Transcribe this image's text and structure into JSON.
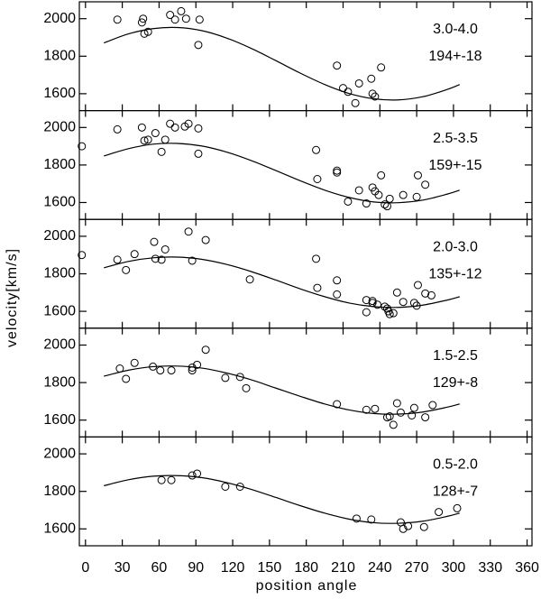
{
  "shared": {
    "xlabel": "position angle",
    "ylabel": "velocity[km/s]"
  },
  "chart_data": [
    {
      "type": "scatter",
      "annotations": [
        "3.0-4.0",
        "194+-18"
      ],
      "x": [
        26,
        46,
        47,
        48,
        51,
        69,
        73,
        78,
        82,
        93,
        92,
        205,
        210,
        214,
        220,
        223,
        233,
        234,
        236,
        241
      ],
      "values": [
        1995,
        1980,
        2000,
        1920,
        1930,
        2020,
        1995,
        2040,
        2000,
        1995,
        1860,
        1750,
        1630,
        1610,
        1550,
        1655,
        1680,
        1600,
        1585,
        1740
      ],
      "fit": {
        "x": [
          15,
          35,
          55,
          75,
          95,
          115,
          135,
          155,
          175,
          195,
          215,
          235,
          255,
          275,
          295,
          305
        ],
        "values": [
          1871,
          1919,
          1947,
          1953,
          1936,
          1897,
          1842,
          1777,
          1710,
          1649,
          1601,
          1573,
          1567,
          1584,
          1623,
          1649
        ]
      },
      "xlim": [
        -5,
        364
      ],
      "xticks": [
        0,
        30,
        60,
        90,
        120,
        150,
        180,
        210,
        240,
        270,
        300,
        330,
        360
      ],
      "ylim": [
        1510,
        2090
      ],
      "yticks": [
        1600,
        1800,
        2000
      ]
    },
    {
      "type": "scatter",
      "annotations": [
        "2.5-3.5",
        "159+-15"
      ],
      "x": [
        -3,
        26,
        46,
        48,
        51,
        57,
        62,
        65,
        69,
        73,
        81,
        84,
        92,
        92,
        188,
        189,
        205,
        205,
        214,
        223,
        229,
        234,
        236,
        239,
        241,
        244,
        246,
        248,
        259,
        270,
        271,
        277
      ],
      "values": [
        1900,
        1990,
        2000,
        1930,
        1935,
        1970,
        1870,
        1935,
        2020,
        2000,
        2005,
        2020,
        1995,
        1860,
        1880,
        1725,
        1770,
        1760,
        1605,
        1665,
        1595,
        1680,
        1660,
        1640,
        1745,
        1590,
        1580,
        1620,
        1640,
        1630,
        1745,
        1695
      ],
      "fit": {
        "x": [
          15,
          35,
          55,
          75,
          95,
          115,
          135,
          155,
          175,
          195,
          215,
          235,
          255,
          275,
          295,
          305
        ],
        "values": [
          1848,
          1887,
          1911,
          1915,
          1901,
          1869,
          1824,
          1771,
          1716,
          1666,
          1627,
          1603,
          1599,
          1613,
          1645,
          1666
        ]
      },
      "xlim": [
        -5,
        364
      ],
      "xticks": [
        0,
        30,
        60,
        90,
        120,
        150,
        180,
        210,
        240,
        270,
        300,
        330,
        360
      ],
      "ylim": [
        1510,
        2090
      ],
      "yticks": [
        1600,
        1800,
        2000
      ]
    },
    {
      "type": "scatter",
      "annotations": [
        "2.0-3.0",
        "135+-12"
      ],
      "x": [
        -3,
        26,
        33,
        40,
        56,
        57,
        62,
        65,
        84,
        87,
        98,
        134,
        188,
        189,
        205,
        205,
        229,
        229,
        234,
        234,
        238,
        244,
        246,
        247,
        248,
        251,
        254,
        259,
        268,
        270,
        271,
        277,
        282
      ],
      "values": [
        1900,
        1875,
        1820,
        1905,
        1970,
        1880,
        1875,
        1930,
        2025,
        1870,
        1980,
        1770,
        1880,
        1725,
        1765,
        1690,
        1595,
        1660,
        1655,
        1645,
        1635,
        1625,
        1615,
        1600,
        1585,
        1590,
        1700,
        1650,
        1645,
        1630,
        1740,
        1695,
        1685
      ],
      "fit": {
        "x": [
          15,
          35,
          55,
          75,
          95,
          115,
          135,
          155,
          175,
          195,
          215,
          235,
          255,
          275,
          295,
          305
        ],
        "values": [
          1832,
          1866,
          1885,
          1889,
          1877,
          1850,
          1812,
          1767,
          1720,
          1678,
          1644,
          1625,
          1621,
          1633,
          1660,
          1678
        ]
      },
      "xlim": [
        -5,
        364
      ],
      "xticks": [
        0,
        30,
        60,
        90,
        120,
        150,
        180,
        210,
        240,
        270,
        300,
        330,
        360
      ],
      "ylim": [
        1510,
        2090
      ],
      "yticks": [
        1600,
        1800,
        2000
      ]
    },
    {
      "type": "scatter",
      "annotations": [
        "1.5-2.5",
        "129+-8"
      ],
      "x": [
        28,
        33,
        40,
        55,
        61,
        70,
        87,
        87,
        91,
        98,
        114,
        126,
        131,
        205,
        229,
        236,
        246,
        248,
        251,
        254,
        257,
        266,
        268,
        277,
        283
      ],
      "values": [
        1875,
        1820,
        1905,
        1885,
        1865,
        1865,
        1865,
        1880,
        1895,
        1975,
        1825,
        1830,
        1770,
        1685,
        1655,
        1660,
        1615,
        1620,
        1575,
        1690,
        1640,
        1625,
        1665,
        1615,
        1680
      ],
      "fit": {
        "x": [
          15,
          35,
          55,
          75,
          95,
          115,
          135,
          155,
          175,
          195,
          215,
          235,
          255,
          275,
          295,
          305
        ],
        "values": [
          1834,
          1866,
          1885,
          1888,
          1877,
          1851,
          1815,
          1771,
          1727,
          1686,
          1654,
          1635,
          1632,
          1643,
          1669,
          1686
        ]
      },
      "xlim": [
        -5,
        364
      ],
      "xticks": [
        0,
        30,
        60,
        90,
        120,
        150,
        180,
        210,
        240,
        270,
        300,
        330,
        360
      ],
      "ylim": [
        1510,
        2090
      ],
      "yticks": [
        1600,
        1800,
        2000
      ]
    },
    {
      "type": "scatter",
      "annotations": [
        "0.5-2.0",
        "128+-7"
      ],
      "x": [
        62,
        70,
        87,
        91,
        114,
        126,
        221,
        233,
        257,
        259,
        263,
        276,
        288,
        303
      ],
      "values": [
        1860,
        1860,
        1885,
        1895,
        1825,
        1825,
        1655,
        1650,
        1635,
        1600,
        1615,
        1610,
        1690,
        1710
      ],
      "fit": {
        "x": [
          15,
          35,
          55,
          75,
          95,
          115,
          135,
          155,
          175,
          195,
          215,
          235,
          255,
          275,
          295,
          305
        ],
        "values": [
          1830,
          1862,
          1881,
          1884,
          1873,
          1847,
          1811,
          1768,
          1724,
          1684,
          1652,
          1633,
          1630,
          1641,
          1667,
          1684
        ]
      },
      "xlim": [
        -5,
        364
      ],
      "xticks": [
        0,
        30,
        60,
        90,
        120,
        150,
        180,
        210,
        240,
        270,
        300,
        330,
        360
      ],
      "ylim": [
        1510,
        2090
      ],
      "yticks": [
        1600,
        1800,
        2000
      ]
    }
  ]
}
